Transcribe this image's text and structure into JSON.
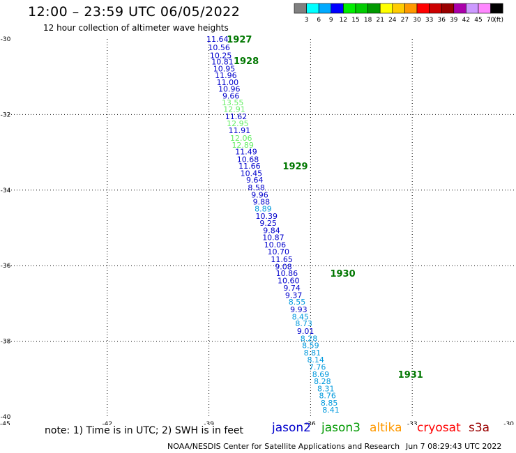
{
  "header": {
    "title": "12:00 – 23:59 UTC 06/05/2022",
    "subtitle": "12 hour collection of altimeter wave heights"
  },
  "footer": {
    "note": "note: 1) Time is in UTC; 2) SWH is in feet",
    "credit": "NOAA/NESDIS Center for Satellite Applications and Research",
    "timestamp": "Jun  7 08:29:43 UTC 2022"
  },
  "satellites": [
    {
      "name": "jason2",
      "color": "#0000cc"
    },
    {
      "name": "jason3",
      "color": "#009900"
    },
    {
      "name": "altika",
      "color": "#ff9900"
    },
    {
      "name": "cryosat",
      "color": "#ff0000"
    },
    {
      "name": "s3a",
      "color": "#990000"
    }
  ],
  "colorbar": {
    "unit": "(ft)",
    "colors": [
      "#808080",
      "#00ffff",
      "#00aaff",
      "#0000ff",
      "#00ee00",
      "#00cc00",
      "#009900",
      "#ffff00",
      "#ffcc00",
      "#ff9900",
      "#ff0000",
      "#cc0000",
      "#990000",
      "#aa00aa",
      "#cc99ff",
      "#ff88ff",
      "#000000"
    ],
    "labels": [
      "3",
      "6",
      "9",
      "12",
      "15",
      "18",
      "21",
      "24",
      "27",
      "30",
      "33",
      "36",
      "39",
      "42",
      "45",
      "70"
    ]
  },
  "chart_data": {
    "type": "scatter",
    "xlim": [
      -45,
      -30
    ],
    "ylim": [
      -40,
      -30
    ],
    "xticks": [
      -45,
      -42,
      -39,
      -36,
      -33,
      -30
    ],
    "yticks": [
      -30,
      -32,
      -34,
      -36,
      -38,
      -40
    ],
    "grid": true,
    "points": [
      {
        "lon": -38.75,
        "lat": -30.0,
        "label": "11.64",
        "color": "#0000cc"
      },
      {
        "lon": -38.7,
        "lat": -30.22,
        "label": "10.56",
        "color": "#0000cc"
      },
      {
        "lon": -38.65,
        "lat": -30.43,
        "label": "10.25",
        "color": "#0000cc"
      },
      {
        "lon": -38.6,
        "lat": -30.6,
        "label": "10.81",
        "color": "#0000cc"
      },
      {
        "lon": -38.55,
        "lat": -30.78,
        "label": "10.95",
        "color": "#0000cc"
      },
      {
        "lon": -38.5,
        "lat": -30.96,
        "label": "11.96",
        "color": "#0000cc"
      },
      {
        "lon": -38.45,
        "lat": -31.14,
        "label": "11.00",
        "color": "#0000cc"
      },
      {
        "lon": -38.4,
        "lat": -31.32,
        "label": "10.96",
        "color": "#0000cc"
      },
      {
        "lon": -38.35,
        "lat": -31.5,
        "label": "9.66",
        "color": "#0000cc"
      },
      {
        "lon": -38.3,
        "lat": -31.68,
        "label": "13.55",
        "color": "#66ee66"
      },
      {
        "lon": -38.25,
        "lat": -31.85,
        "label": "12.91",
        "color": "#66ee66"
      },
      {
        "lon": -38.2,
        "lat": -32.05,
        "label": "11.62",
        "color": "#0000cc"
      },
      {
        "lon": -38.15,
        "lat": -32.23,
        "label": "12.95",
        "color": "#66ee66"
      },
      {
        "lon": -38.1,
        "lat": -32.42,
        "label": "11.91",
        "color": "#0000cc"
      },
      {
        "lon": -38.05,
        "lat": -32.62,
        "label": "12.06",
        "color": "#66ee66"
      },
      {
        "lon": -38.0,
        "lat": -32.8,
        "label": "12.89",
        "color": "#66ee66"
      },
      {
        "lon": -37.9,
        "lat": -32.98,
        "label": "11.49",
        "color": "#0000cc"
      },
      {
        "lon": -37.85,
        "lat": -33.18,
        "label": "10.68",
        "color": "#0000cc"
      },
      {
        "lon": -37.8,
        "lat": -33.36,
        "label": "11.66",
        "color": "#0000cc"
      },
      {
        "lon": -37.75,
        "lat": -33.55,
        "label": "10.45",
        "color": "#0000cc"
      },
      {
        "lon": -37.65,
        "lat": -33.73,
        "label": "9.64",
        "color": "#0000cc"
      },
      {
        "lon": -37.6,
        "lat": -33.93,
        "label": "8.58",
        "color": "#0000cc"
      },
      {
        "lon": -37.5,
        "lat": -34.12,
        "label": "9.96",
        "color": "#0000cc"
      },
      {
        "lon": -37.45,
        "lat": -34.31,
        "label": "9.88",
        "color": "#0000cc"
      },
      {
        "lon": -37.4,
        "lat": -34.49,
        "label": "8.89",
        "color": "#0099dd"
      },
      {
        "lon": -37.3,
        "lat": -34.69,
        "label": "10.39",
        "color": "#0000cc"
      },
      {
        "lon": -37.25,
        "lat": -34.87,
        "label": "9.25",
        "color": "#0000cc"
      },
      {
        "lon": -37.15,
        "lat": -35.06,
        "label": "9.84",
        "color": "#0000cc"
      },
      {
        "lon": -37.1,
        "lat": -35.25,
        "label": "10.87",
        "color": "#0000cc"
      },
      {
        "lon": -37.05,
        "lat": -35.44,
        "label": "10.06",
        "color": "#0000cc"
      },
      {
        "lon": -36.95,
        "lat": -35.63,
        "label": "10.70",
        "color": "#0000cc"
      },
      {
        "lon": -36.85,
        "lat": -35.83,
        "label": "11.65",
        "color": "#0000cc"
      },
      {
        "lon": -36.8,
        "lat": -36.02,
        "label": "9.08",
        "color": "#0000cc"
      },
      {
        "lon": -36.7,
        "lat": -36.2,
        "label": "10.86",
        "color": "#0000cc"
      },
      {
        "lon": -36.65,
        "lat": -36.39,
        "label": "10.60",
        "color": "#0000cc"
      },
      {
        "lon": -36.55,
        "lat": -36.59,
        "label": "9.74",
        "color": "#0000cc"
      },
      {
        "lon": -36.5,
        "lat": -36.78,
        "label": "9.37",
        "color": "#0000cc"
      },
      {
        "lon": -36.4,
        "lat": -36.96,
        "label": "8.55",
        "color": "#0099dd"
      },
      {
        "lon": -36.35,
        "lat": -37.16,
        "label": "9.93",
        "color": "#0000cc"
      },
      {
        "lon": -36.3,
        "lat": -37.35,
        "label": "8.45",
        "color": "#0099dd"
      },
      {
        "lon": -36.2,
        "lat": -37.53,
        "label": "8.73",
        "color": "#0099dd"
      },
      {
        "lon": -36.15,
        "lat": -37.73,
        "label": "9.01",
        "color": "#0000cc"
      },
      {
        "lon": -36.05,
        "lat": -37.92,
        "label": "8.28",
        "color": "#0099dd"
      },
      {
        "lon": -36.0,
        "lat": -38.11,
        "label": "8.59",
        "color": "#0099dd"
      },
      {
        "lon": -35.95,
        "lat": -38.3,
        "label": "8.81",
        "color": "#0099dd"
      },
      {
        "lon": -35.85,
        "lat": -38.49,
        "label": "8.14",
        "color": "#0099dd"
      },
      {
        "lon": -35.8,
        "lat": -38.68,
        "label": "7.76",
        "color": "#0099dd"
      },
      {
        "lon": -35.7,
        "lat": -38.87,
        "label": "8.69",
        "color": "#0099dd"
      },
      {
        "lon": -35.65,
        "lat": -39.06,
        "label": "8.28",
        "color": "#0099dd"
      },
      {
        "lon": -35.55,
        "lat": -39.25,
        "label": "8.31",
        "color": "#0099dd"
      },
      {
        "lon": -35.5,
        "lat": -39.44,
        "label": "8.76",
        "color": "#0099dd"
      },
      {
        "lon": -35.45,
        "lat": -39.63,
        "label": "8.85",
        "color": "#0099dd"
      },
      {
        "lon": -35.4,
        "lat": -39.82,
        "label": "8.41",
        "color": "#0099dd"
      }
    ],
    "time_labels": [
      {
        "lon": -38.1,
        "lat": -30.0,
        "text": "1927",
        "color": "#007700"
      },
      {
        "lon": -37.9,
        "lat": -30.57,
        "text": "1928",
        "color": "#007700"
      },
      {
        "lon": -36.45,
        "lat": -33.36,
        "text": "1929",
        "color": "#007700"
      },
      {
        "lon": -35.05,
        "lat": -36.2,
        "text": "1930",
        "color": "#007700"
      },
      {
        "lon": -33.05,
        "lat": -38.87,
        "text": "1931",
        "color": "#007700"
      }
    ]
  }
}
